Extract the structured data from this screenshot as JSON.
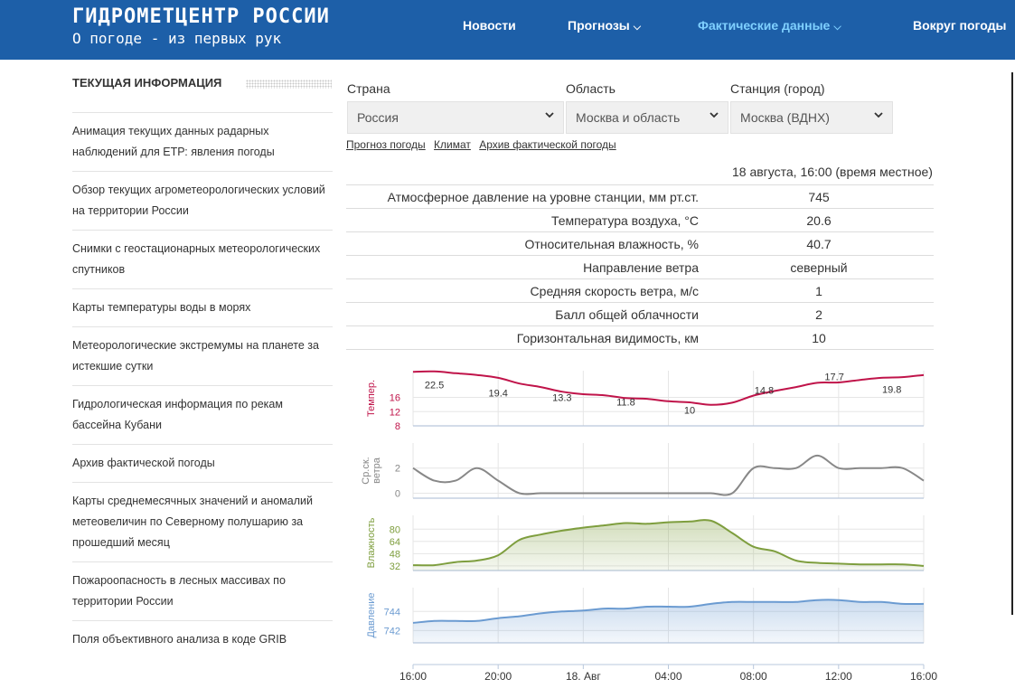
{
  "header": {
    "title": "ГИДРОМЕТЦЕНТР РОССИИ",
    "subtitle": "О погоде - из первых рук",
    "nav": [
      {
        "label": "Новости"
      },
      {
        "label": "Прогнозы",
        "chevron": "⌵"
      },
      {
        "label": "Фактические данные",
        "chevron": "⌵"
      },
      {
        "label": "Вокруг погоды"
      }
    ],
    "colors": {
      "background": "#1d5fa8",
      "active": "#7fd0ff"
    }
  },
  "sidebar": {
    "title": "ТЕКУЩАЯ ИНФОРМАЦИЯ",
    "items": [
      {
        "label": "Анимация текущих данных радарных наблюдений для ЕТР: явления погоды"
      },
      {
        "label": "Обзор текущих агрометеорологических условий на территории России"
      },
      {
        "label": "Снимки с геостационарных метеорологических спутников"
      },
      {
        "label": "Карты температуры воды в морях"
      },
      {
        "label": "Метеорологические экстремумы на планете за истекшие сутки"
      },
      {
        "label": "Гидрологическая информация по рекам бассейна Кубани"
      },
      {
        "label": "Архив фактической погоды"
      },
      {
        "label": "Карты среднемесячных значений и аномалий метеовеличин по Северному полушарию за прошедший месяц"
      },
      {
        "label": "Пожароопасность в лесных массивах по территории России"
      },
      {
        "label": "Поля объективного анализа в коде GRIB"
      }
    ]
  },
  "filters": {
    "country": {
      "label": "Страна",
      "value": "Россия"
    },
    "region": {
      "label": "Область",
      "value": "Москва и область"
    },
    "station": {
      "label": "Станция (город)",
      "value": "Москва (ВДНХ)"
    },
    "arrow_icon": "chevron-down"
  },
  "links": [
    {
      "label": "Прогноз погоды"
    },
    {
      "label": "Климат"
    },
    {
      "label": "Архив фактической погоды"
    }
  ],
  "observation": {
    "datetime": "18 августа, 16:00 (время местное)",
    "rows": [
      {
        "param": "Атмосферное давление на уровне станции, мм рт.ст.",
        "value": "745"
      },
      {
        "param": "Температура воздуха, °С",
        "value": "20.6"
      },
      {
        "param": "Относительная влажность, %",
        "value": "40.7"
      },
      {
        "param": "Направление ветра",
        "value": "северный"
      },
      {
        "param": "Средняя скорость ветра, м/с",
        "value": "1"
      },
      {
        "param": "Балл общей облачности",
        "value": "2"
      },
      {
        "param": "Горизонтальная видимость, км",
        "value": "10"
      }
    ]
  },
  "chart_data": {
    "type": "line",
    "x_ticks": [
      "16:00",
      "20:00",
      "18. Авг",
      "04:00",
      "08:00",
      "12:00",
      "16:00"
    ],
    "x_hours": [
      0,
      4,
      8,
      12,
      16,
      20,
      24
    ],
    "panels": [
      {
        "ylabel": "Темпер.",
        "color": "#c0144a",
        "fill": false,
        "ylim": [
          8,
          23.5
        ],
        "yticks": [
          8,
          12,
          16
        ],
        "points": [
          [
            0,
            23.2
          ],
          [
            1,
            23.3
          ],
          [
            2,
            22.8
          ],
          [
            3,
            22.3
          ],
          [
            4,
            21.5
          ],
          [
            5,
            19.9
          ],
          [
            6,
            18.9
          ],
          [
            7,
            17.6
          ],
          [
            8,
            16.9
          ],
          [
            9,
            16.6
          ],
          [
            10,
            15.8
          ],
          [
            11,
            15.6
          ],
          [
            12,
            14.9
          ],
          [
            13,
            14.6
          ],
          [
            14,
            13.9
          ],
          [
            15,
            14.5
          ],
          [
            16,
            16.5
          ],
          [
            17,
            17.8
          ],
          [
            18,
            18.9
          ],
          [
            19,
            20.1
          ],
          [
            20,
            20.2
          ],
          [
            21,
            20.9
          ],
          [
            22,
            21.5
          ],
          [
            23,
            21.7
          ],
          [
            24,
            22.3
          ]
        ],
        "labels": [
          {
            "x": 1,
            "y": 19.5,
            "text": "22.5"
          },
          {
            "x": 4,
            "y": 17.3,
            "text": "19.4"
          },
          {
            "x": 7,
            "y": 16.0,
            "text": "13.3"
          },
          {
            "x": 10,
            "y": 14.7,
            "text": "11.8"
          },
          {
            "x": 13,
            "y": 12.4,
            "text": "10"
          },
          {
            "x": 16.5,
            "y": 18.0,
            "text": "14.8"
          },
          {
            "x": 19.8,
            "y": 21.8,
            "text": "17.7"
          },
          {
            "x": 22.5,
            "y": 18.3,
            "text": "19.8"
          }
        ]
      },
      {
        "ylabel": "Ср.ск. ветра",
        "color": "#888888",
        "fill": false,
        "ylim": [
          -0.4,
          4.0
        ],
        "yticks": [
          0,
          2
        ],
        "points": [
          [
            0,
            2
          ],
          [
            1,
            1
          ],
          [
            2,
            1
          ],
          [
            3,
            2
          ],
          [
            4,
            1
          ],
          [
            5,
            0
          ],
          [
            6,
            0
          ],
          [
            7,
            0
          ],
          [
            8,
            0
          ],
          [
            9,
            0
          ],
          [
            10,
            0
          ],
          [
            11,
            0
          ],
          [
            12,
            0
          ],
          [
            13,
            0
          ],
          [
            14,
            0
          ],
          [
            15,
            0
          ],
          [
            16,
            2
          ],
          [
            17,
            2
          ],
          [
            18,
            2
          ],
          [
            19,
            3
          ],
          [
            20,
            2
          ],
          [
            21,
            2
          ],
          [
            22,
            2
          ],
          [
            23,
            2
          ],
          [
            24,
            1
          ]
        ]
      },
      {
        "ylabel": "Влажность",
        "color": "#7e9e3e",
        "fill": true,
        "ylim": [
          26,
          98
        ],
        "yticks": [
          32,
          48,
          64,
          80
        ],
        "points": [
          [
            0,
            33
          ],
          [
            1,
            33
          ],
          [
            2,
            37
          ],
          [
            3,
            39
          ],
          [
            4,
            46
          ],
          [
            5,
            66
          ],
          [
            6,
            73
          ],
          [
            7,
            78
          ],
          [
            8,
            82
          ],
          [
            9,
            85
          ],
          [
            10,
            88
          ],
          [
            11,
            87
          ],
          [
            12,
            89
          ],
          [
            13,
            90
          ],
          [
            14,
            91
          ],
          [
            15,
            75
          ],
          [
            16,
            57
          ],
          [
            17,
            51
          ],
          [
            18,
            39
          ],
          [
            19,
            36
          ],
          [
            20,
            35
          ],
          [
            21,
            34
          ],
          [
            22,
            34
          ],
          [
            23,
            34
          ],
          [
            24,
            32
          ]
        ]
      },
      {
        "ylabel": "Давление",
        "color": "#6b9bd1",
        "fill": true,
        "ylim": [
          740.7,
          746.5
        ],
        "yticks": [
          742,
          744
        ],
        "points": [
          [
            0,
            742.8
          ],
          [
            1,
            743.0
          ],
          [
            2,
            743.0
          ],
          [
            3,
            743.0
          ],
          [
            4,
            743.3
          ],
          [
            5,
            743.5
          ],
          [
            6,
            743.8
          ],
          [
            7,
            744.0
          ],
          [
            8,
            744.1
          ],
          [
            9,
            744.3
          ],
          [
            10,
            744.3
          ],
          [
            11,
            744.5
          ],
          [
            12,
            744.5
          ],
          [
            13,
            744.5
          ],
          [
            14,
            744.8
          ],
          [
            15,
            745.0
          ],
          [
            16,
            745.0
          ],
          [
            17,
            745.0
          ],
          [
            18,
            745.0
          ],
          [
            19,
            745.2
          ],
          [
            20,
            745.2
          ],
          [
            21,
            745.0
          ],
          [
            22,
            745.0
          ],
          [
            23,
            744.8
          ],
          [
            24,
            744.8
          ]
        ]
      }
    ]
  }
}
